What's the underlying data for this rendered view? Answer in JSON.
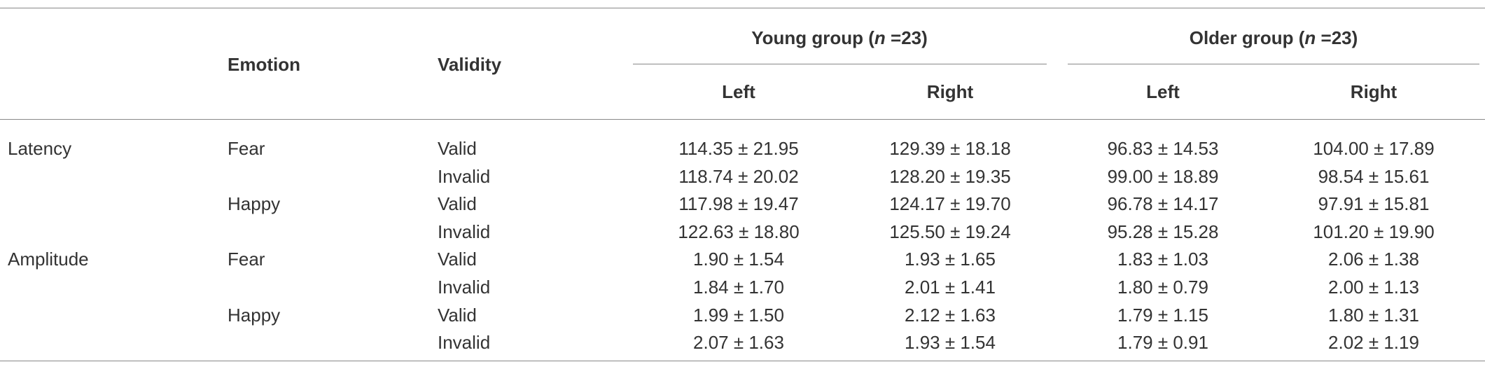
{
  "table": {
    "header": {
      "emotion": "Emotion",
      "validity": "Validity",
      "groups": [
        {
          "prefix": "Young group (",
          "n_symbol": "n",
          "suffix": " =23)",
          "columns": [
            "Left",
            "Right"
          ]
        },
        {
          "prefix": "Older group (",
          "n_symbol": "n",
          "suffix": " =23)",
          "columns": [
            "Left",
            "Right"
          ]
        }
      ]
    },
    "measures": [
      {
        "label": "Latency",
        "emotions": [
          {
            "label": "Fear",
            "rows": [
              {
                "validity": "Valid",
                "values": [
                  "114.35 ± 21.95",
                  "129.39 ± 18.18",
                  "96.83 ± 14.53",
                  "104.00 ± 17.89"
                ]
              },
              {
                "validity": "Invalid",
                "values": [
                  "118.74 ± 20.02",
                  "128.20 ± 19.35",
                  "99.00 ± 18.89",
                  "98.54 ± 15.61"
                ]
              }
            ]
          },
          {
            "label": "Happy",
            "rows": [
              {
                "validity": "Valid",
                "values": [
                  "117.98 ± 19.47",
                  "124.17 ± 19.70",
                  "96.78 ± 14.17",
                  "97.91 ± 15.81"
                ]
              },
              {
                "validity": "Invalid",
                "values": [
                  "122.63 ± 18.80",
                  "125.50 ± 19.24",
                  "95.28 ± 15.28",
                  "101.20 ± 19.90"
                ]
              }
            ]
          }
        ]
      },
      {
        "label": "Amplitude",
        "emotions": [
          {
            "label": "Fear",
            "rows": [
              {
                "validity": "Valid",
                "values": [
                  "1.90 ± 1.54",
                  "1.93 ± 1.65",
                  "1.83 ± 1.03",
                  "2.06 ± 1.38"
                ]
              },
              {
                "validity": "Invalid",
                "values": [
                  "1.84 ± 1.70",
                  "2.01 ± 1.41",
                  "1.80 ± 0.79",
                  "2.00 ± 1.13"
                ]
              }
            ]
          },
          {
            "label": "Happy",
            "rows": [
              {
                "validity": "Valid",
                "values": [
                  "1.99 ± 1.50",
                  "2.12 ± 1.63",
                  "1.79 ± 1.15",
                  "1.80 ± 1.31"
                ]
              },
              {
                "validity": "Invalid",
                "values": [
                  "2.07 ± 1.63",
                  "1.93 ± 1.54",
                  "1.79 ± 0.91",
                  "2.02 ± 1.19"
                ]
              }
            ]
          }
        ]
      }
    ]
  }
}
